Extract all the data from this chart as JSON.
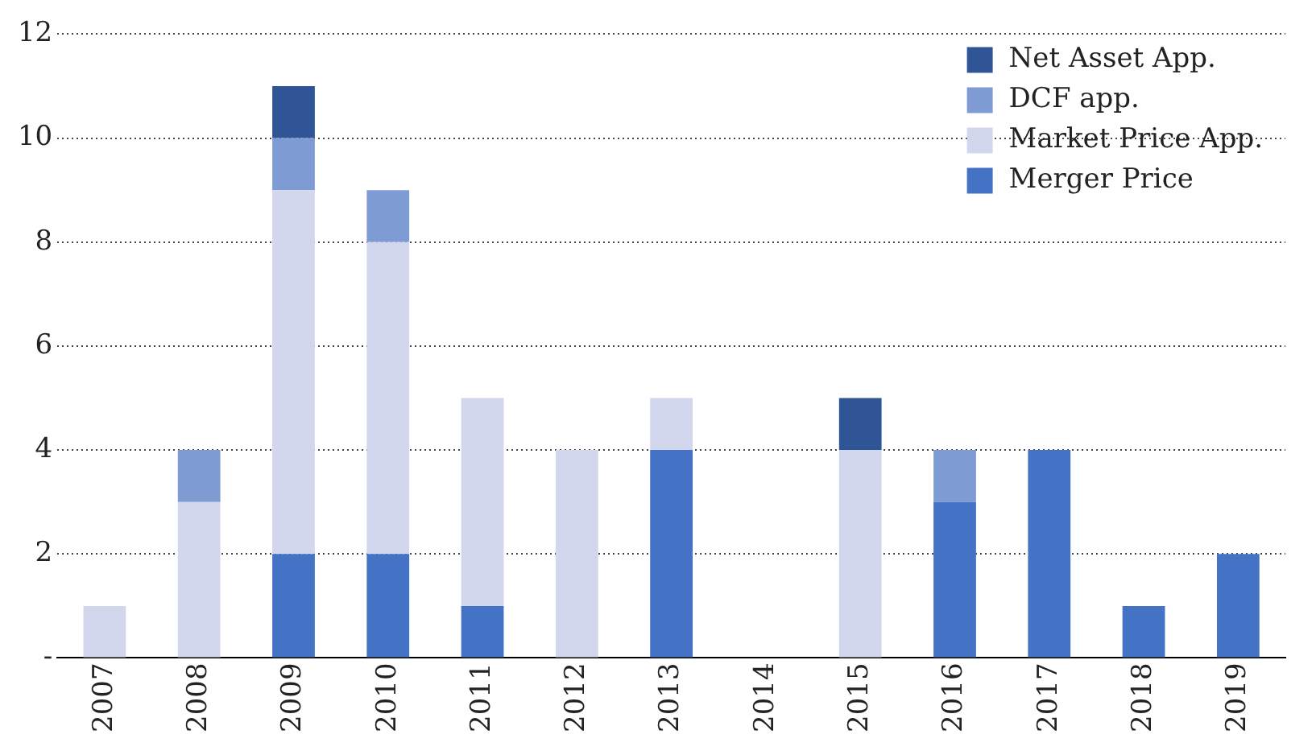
{
  "chart_data": {
    "type": "bar",
    "stacked": true,
    "categories": [
      "2007",
      "2008",
      "2009",
      "2010",
      "2011",
      "2012",
      "2013",
      "2014",
      "2015",
      "2016",
      "2017",
      "2018",
      "2019"
    ],
    "series": [
      {
        "name": "Merger Price",
        "color": "#4472c4",
        "values": [
          0,
          0,
          2,
          2,
          1,
          0,
          4,
          0,
          0,
          3,
          4,
          1,
          2
        ]
      },
      {
        "name": "Market Price App.",
        "color": "#d3d7ee",
        "values": [
          1,
          3,
          7,
          6,
          4,
          4,
          1,
          0,
          4,
          0,
          0,
          0,
          0
        ]
      },
      {
        "name": "DCF app.",
        "color": "#7f9bd3",
        "values": [
          0,
          1,
          1,
          1,
          0,
          0,
          0,
          0,
          0,
          1,
          0,
          0,
          0
        ]
      },
      {
        "name": "Net Asset App.",
        "color": "#2f5597",
        "values": [
          0,
          0,
          1,
          0,
          0,
          0,
          0,
          0,
          1,
          0,
          0,
          0,
          0
        ]
      }
    ],
    "ylim": [
      0,
      12
    ],
    "yticks": [
      {
        "value": 0,
        "label": "-"
      },
      2,
      4,
      6,
      8,
      10,
      12
    ],
    "grid": "y",
    "legend": "top right"
  }
}
